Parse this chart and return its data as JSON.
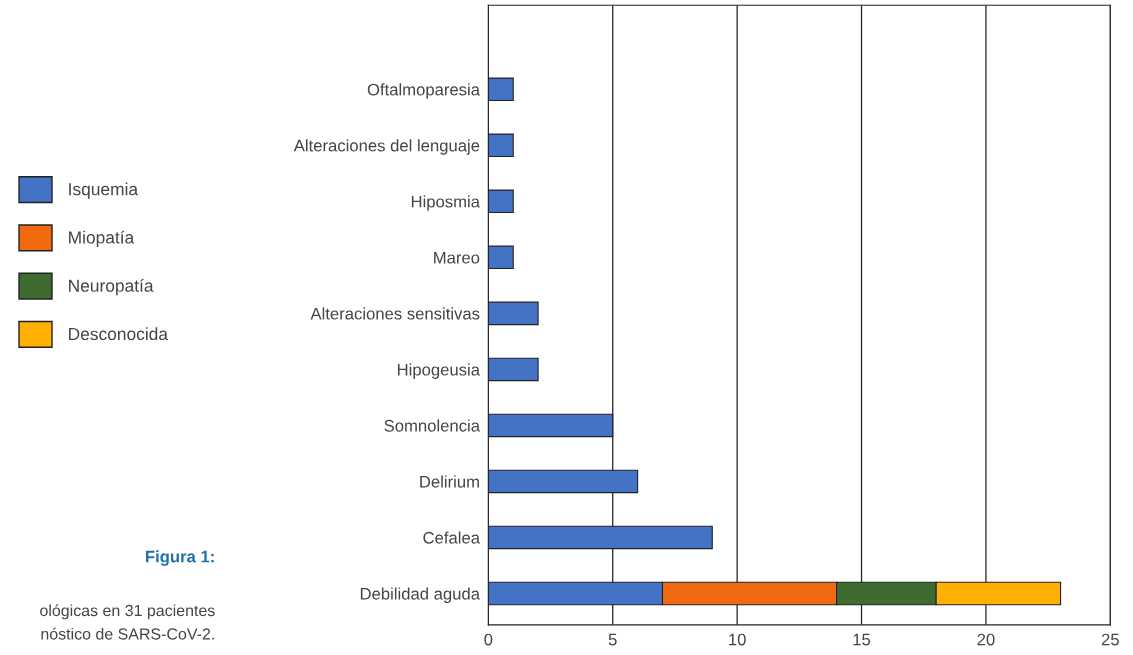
{
  "chart_data": {
    "type": "bar",
    "orientation": "horizontal",
    "stacked": true,
    "categories": [
      "Oftalmoparesia",
      "Alteraciones del lenguaje",
      "Hiposmia",
      "Mareo",
      "Alteraciones sensitivas",
      "Hipogeusia",
      "Somnolencia",
      "Delirium",
      "Cefalea",
      "Debilidad aguda"
    ],
    "series": [
      {
        "name": "Isquemia",
        "color": "#4472c4",
        "values": [
          1,
          1,
          1,
          1,
          2,
          2,
          5,
          6,
          9,
          7
        ]
      },
      {
        "name": "Miopatía",
        "color": "#f26a10",
        "values": [
          0,
          0,
          0,
          0,
          0,
          0,
          0,
          0,
          0,
          7
        ]
      },
      {
        "name": "Neuropatía",
        "color": "#3e6b2e",
        "values": [
          0,
          0,
          0,
          0,
          0,
          0,
          0,
          0,
          0,
          4
        ]
      },
      {
        "name": "Desconocida",
        "color": "#ffb000",
        "values": [
          0,
          0,
          0,
          0,
          0,
          0,
          0,
          0,
          0,
          5
        ]
      }
    ],
    "xlim": [
      0,
      25
    ],
    "xticks": [
      0,
      5,
      10,
      15,
      20,
      25
    ],
    "grid": "x",
    "legend": "left",
    "annotations": [
      "Figura 1:",
      "ológicas en 31 pacientes",
      "nóstico de SARS-CoV-2."
    ]
  }
}
